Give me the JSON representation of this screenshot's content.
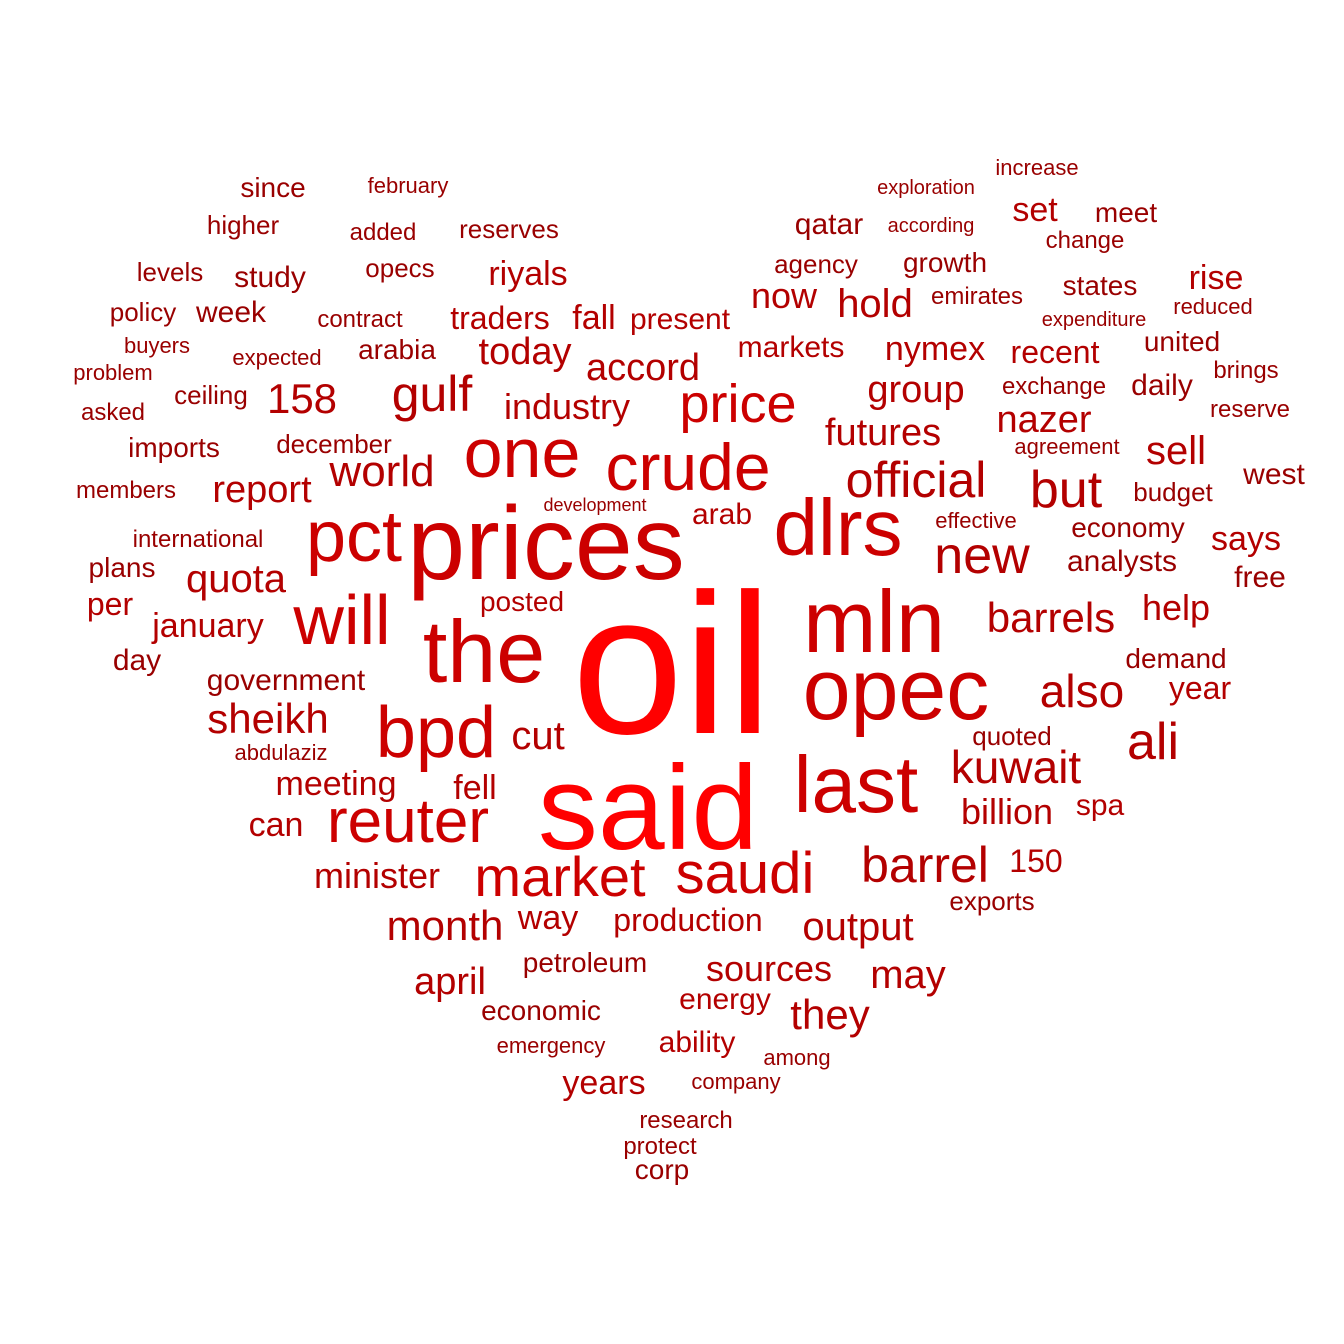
{
  "colors": {
    "top": "#ff0000",
    "high": "#cc0000",
    "mid": "#b30000",
    "low": "#990000"
  },
  "words": [
    {
      "text": "oil",
      "tier": "top"
    },
    {
      "text": "said",
      "tier": "top"
    },
    {
      "text": "prices",
      "tier": "high"
    },
    {
      "text": "mln",
      "tier": "high"
    },
    {
      "text": "opec",
      "tier": "high"
    },
    {
      "text": "the",
      "tier": "high"
    },
    {
      "text": "dlrs",
      "tier": "high"
    },
    {
      "text": "pct",
      "tier": "high"
    },
    {
      "text": "one",
      "tier": "high"
    },
    {
      "text": "will",
      "tier": "high"
    },
    {
      "text": "bpd",
      "tier": "high"
    },
    {
      "text": "last",
      "tier": "high"
    },
    {
      "text": "crude",
      "tier": "high"
    },
    {
      "text": "reuter",
      "tier": "high"
    },
    {
      "text": "market",
      "tier": "high"
    },
    {
      "text": "saudi",
      "tier": "high"
    },
    {
      "text": "price",
      "tier": "high"
    },
    {
      "text": "official",
      "tier": "mid"
    },
    {
      "text": "new",
      "tier": "mid"
    },
    {
      "text": "barrel",
      "tier": "mid"
    },
    {
      "text": "but",
      "tier": "mid"
    },
    {
      "text": "gulf",
      "tier": "mid"
    },
    {
      "text": "kuwait",
      "tier": "mid"
    },
    {
      "text": "also",
      "tier": "mid"
    },
    {
      "text": "ali",
      "tier": "mid"
    },
    {
      "text": "world",
      "tier": "mid"
    },
    {
      "text": "sheikh",
      "tier": "mid"
    },
    {
      "text": "quota",
      "tier": "mid"
    },
    {
      "text": "158",
      "tier": "mid"
    },
    {
      "text": "month",
      "tier": "mid"
    },
    {
      "text": "barrels",
      "tier": "mid"
    },
    {
      "text": "output",
      "tier": "mid"
    },
    {
      "text": "may",
      "tier": "mid"
    },
    {
      "text": "they",
      "tier": "mid"
    },
    {
      "text": "nazer",
      "tier": "mid"
    },
    {
      "text": "report",
      "tier": "mid"
    },
    {
      "text": "today",
      "tier": "mid"
    },
    {
      "text": "accord",
      "tier": "mid"
    },
    {
      "text": "hold",
      "tier": "mid"
    },
    {
      "text": "group",
      "tier": "mid"
    },
    {
      "text": "futures",
      "tier": "mid"
    },
    {
      "text": "sell",
      "tier": "mid"
    },
    {
      "text": "industry",
      "tier": "mid"
    },
    {
      "text": "cut",
      "tier": "mid"
    },
    {
      "text": "billion",
      "tier": "mid"
    },
    {
      "text": "minister",
      "tier": "mid"
    },
    {
      "text": "sources",
      "tier": "mid"
    },
    {
      "text": "april",
      "tier": "mid"
    },
    {
      "text": "now",
      "tier": "mid"
    },
    {
      "text": "help",
      "tier": "mid"
    },
    {
      "text": "meeting",
      "tier": "mid"
    },
    {
      "text": "can",
      "tier": "mid"
    },
    {
      "text": "fell",
      "tier": "mid"
    },
    {
      "text": "production",
      "tier": "mid"
    },
    {
      "text": "way",
      "tier": "mid"
    },
    {
      "text": "years",
      "tier": "mid"
    },
    {
      "text": "january",
      "tier": "mid"
    },
    {
      "text": "arab",
      "tier": "mid"
    },
    {
      "text": "150",
      "tier": "mid"
    },
    {
      "text": "rise",
      "tier": "mid"
    },
    {
      "text": "set",
      "tier": "mid"
    },
    {
      "text": "nymex",
      "tier": "mid"
    },
    {
      "text": "recent",
      "tier": "mid"
    },
    {
      "text": "markets",
      "tier": "mid"
    },
    {
      "text": "traders",
      "tier": "mid"
    },
    {
      "text": "fall",
      "tier": "mid"
    },
    {
      "text": "present",
      "tier": "mid"
    },
    {
      "text": "riyals",
      "tier": "mid"
    },
    {
      "text": "says",
      "tier": "mid"
    },
    {
      "text": "year",
      "tier": "mid"
    },
    {
      "text": "energy",
      "tier": "mid"
    },
    {
      "text": "ability",
      "tier": "mid"
    },
    {
      "text": "per",
      "tier": "mid"
    },
    {
      "text": "spa",
      "tier": "mid"
    },
    {
      "text": "posted",
      "tier": "mid"
    },
    {
      "text": "study",
      "tier": "low"
    },
    {
      "text": "week",
      "tier": "low"
    },
    {
      "text": "since",
      "tier": "low"
    },
    {
      "text": "higher",
      "tier": "low"
    },
    {
      "text": "levels",
      "tier": "low"
    },
    {
      "text": "opecs",
      "tier": "low"
    },
    {
      "text": "added",
      "tier": "low"
    },
    {
      "text": "reserves",
      "tier": "low"
    },
    {
      "text": "february",
      "tier": "low"
    },
    {
      "text": "policy",
      "tier": "low"
    },
    {
      "text": "contract",
      "tier": "low"
    },
    {
      "text": "buyers",
      "tier": "low"
    },
    {
      "text": "problem",
      "tier": "low"
    },
    {
      "text": "expected",
      "tier": "low"
    },
    {
      "text": "arabia",
      "tier": "low"
    },
    {
      "text": "asked",
      "tier": "low"
    },
    {
      "text": "ceiling",
      "tier": "low"
    },
    {
      "text": "imports",
      "tier": "low"
    },
    {
      "text": "december",
      "tier": "low"
    },
    {
      "text": "members",
      "tier": "low"
    },
    {
      "text": "international",
      "tier": "low"
    },
    {
      "text": "plans",
      "tier": "low"
    },
    {
      "text": "day",
      "tier": "low"
    },
    {
      "text": "government",
      "tier": "low"
    },
    {
      "text": "abdulaziz",
      "tier": "low"
    },
    {
      "text": "development",
      "tier": "low"
    },
    {
      "text": "petroleum",
      "tier": "low"
    },
    {
      "text": "economic",
      "tier": "low"
    },
    {
      "text": "emergency",
      "tier": "low"
    },
    {
      "text": "company",
      "tier": "low"
    },
    {
      "text": "among",
      "tier": "low"
    },
    {
      "text": "research",
      "tier": "low"
    },
    {
      "text": "protect",
      "tier": "low"
    },
    {
      "text": "corp",
      "tier": "low"
    },
    {
      "text": "exports",
      "tier": "low"
    },
    {
      "text": "quoted",
      "tier": "low"
    },
    {
      "text": "demand",
      "tier": "low"
    },
    {
      "text": "analysts",
      "tier": "low"
    },
    {
      "text": "economy",
      "tier": "low"
    },
    {
      "text": "effective",
      "tier": "low"
    },
    {
      "text": "budget",
      "tier": "low"
    },
    {
      "text": "free",
      "tier": "low"
    },
    {
      "text": "west",
      "tier": "low"
    },
    {
      "text": "agreement",
      "tier": "low"
    },
    {
      "text": "reserve",
      "tier": "low"
    },
    {
      "text": "daily",
      "tier": "low"
    },
    {
      "text": "exchange",
      "tier": "low"
    },
    {
      "text": "brings",
      "tier": "low"
    },
    {
      "text": "united",
      "tier": "low"
    },
    {
      "text": "reduced",
      "tier": "low"
    },
    {
      "text": "expenditure",
      "tier": "low"
    },
    {
      "text": "states",
      "tier": "low"
    },
    {
      "text": "emirates",
      "tier": "low"
    },
    {
      "text": "growth",
      "tier": "low"
    },
    {
      "text": "agency",
      "tier": "low"
    },
    {
      "text": "qatar",
      "tier": "low"
    },
    {
      "text": "according",
      "tier": "low"
    },
    {
      "text": "exploration",
      "tier": "low"
    },
    {
      "text": "increase",
      "tier": "low"
    },
    {
      "text": "meet",
      "tier": "low"
    },
    {
      "text": "change",
      "tier": "low"
    }
  ]
}
